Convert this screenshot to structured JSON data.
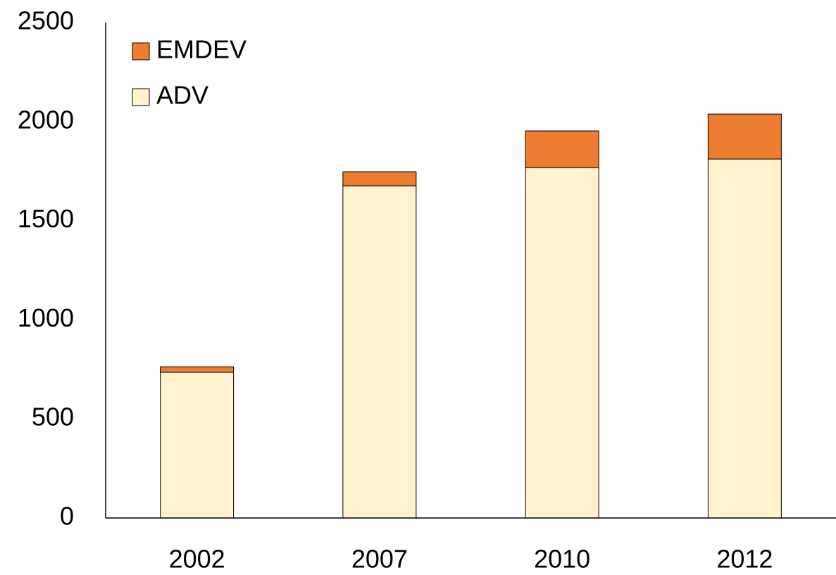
{
  "chart_data": {
    "type": "stacked-bar",
    "categories": [
      "2002",
      "2007",
      "2010",
      "2012"
    ],
    "series": [
      {
        "name": "ADV",
        "color": "#fff2cc",
        "values": [
          735,
          1676,
          1768,
          1811
        ]
      },
      {
        "name": "EMDEV",
        "color": "#ed7d31",
        "values": [
          28,
          71,
          185,
          227
        ]
      }
    ],
    "ylim": [
      0,
      2500
    ],
    "yticks": [
      0,
      500,
      1000,
      1500,
      2000,
      2500
    ],
    "grid": false,
    "legend": "upper-left"
  }
}
